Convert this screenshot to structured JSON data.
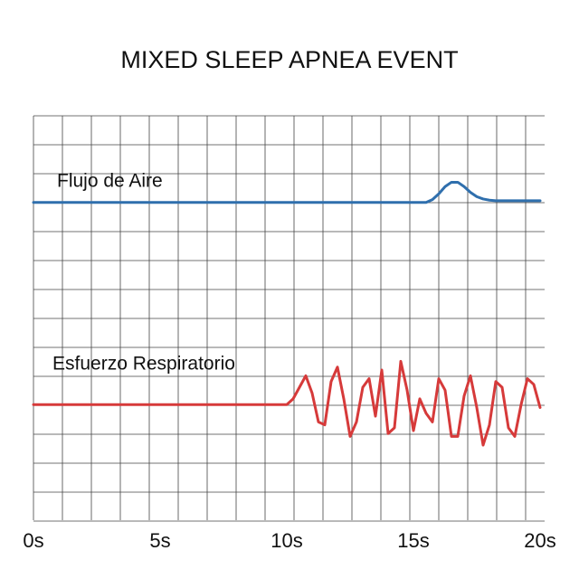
{
  "chart_data": {
    "type": "line",
    "title": "MIXED SLEEP APNEA EVENT",
    "x": [
      0,
      0.25,
      0.5,
      0.75,
      1,
      1.25,
      1.5,
      1.75,
      2,
      2.25,
      2.5,
      2.75,
      3,
      3.25,
      3.5,
      3.75,
      4,
      4.25,
      4.5,
      4.75,
      5,
      5.25,
      5.5,
      5.75,
      6,
      6.25,
      6.5,
      6.75,
      7,
      7.25,
      7.5,
      7.75,
      8,
      8.25,
      8.5,
      8.75,
      9,
      9.25,
      9.5,
      9.75,
      10,
      10.25,
      10.5,
      10.75,
      11,
      11.25,
      11.5,
      11.75,
      12,
      12.25,
      12.5,
      12.75,
      13,
      13.25,
      13.5,
      13.75,
      14,
      14.25,
      14.5,
      14.75,
      15,
      15.25,
      15.5,
      15.75,
      16,
      16.25,
      16.5,
      16.75,
      17,
      17.25,
      17.5,
      17.75,
      18,
      18.25,
      18.5,
      18.75,
      19,
      19.25,
      19.5,
      19.75,
      20
    ],
    "series": [
      {
        "name": "Flujo de Aire",
        "color": "#2f6fad",
        "values": [
          11,
          11,
          11,
          11,
          11,
          11,
          11,
          11,
          11,
          11,
          11,
          11,
          11,
          11,
          11,
          11,
          11,
          11,
          11,
          11,
          11,
          11,
          11,
          11,
          11,
          11,
          11,
          11,
          11,
          11,
          11,
          11,
          11,
          11,
          11,
          11,
          11,
          11,
          11,
          11,
          11,
          11,
          11,
          11,
          11,
          11,
          11,
          11,
          11,
          11,
          11,
          11,
          11,
          11,
          11,
          11,
          11,
          11,
          11,
          11,
          11,
          11,
          11,
          11.1,
          11.3,
          11.55,
          11.7,
          11.7,
          11.55,
          11.35,
          11.2,
          11.12,
          11.08,
          11.06,
          11.06,
          11.06,
          11.06,
          11.06,
          11.06,
          11.06,
          11.06
        ]
      },
      {
        "name": "Esfuerzo Respiratorio",
        "color": "#d63a3a",
        "values": [
          4,
          4,
          4,
          4,
          4,
          4,
          4,
          4,
          4,
          4,
          4,
          4,
          4,
          4,
          4,
          4,
          4,
          4,
          4,
          4,
          4,
          4,
          4,
          4,
          4,
          4,
          4,
          4,
          4,
          4,
          4,
          4,
          4,
          4,
          4,
          4,
          4,
          4,
          4,
          4,
          4,
          4.2,
          4.6,
          5.0,
          4.4,
          3.4,
          3.3,
          4.8,
          5.3,
          4.2,
          2.9,
          3.4,
          4.6,
          4.9,
          3.6,
          5.2,
          3.0,
          3.2,
          5.5,
          4.5,
          3.1,
          4.2,
          3.7,
          3.4,
          4.9,
          4.5,
          2.9,
          2.9,
          4.3,
          5.0,
          3.9,
          2.6,
          3.3,
          4.8,
          4.6,
          3.2,
          2.9,
          4.0,
          4.9,
          4.7,
          3.9
        ]
      }
    ],
    "xlim": [
      0,
      20
    ],
    "xticks": [
      {
        "value": 0,
        "label": "0s"
      },
      {
        "value": 5,
        "label": "5s"
      },
      {
        "value": 10,
        "label": "10s"
      },
      {
        "value": 15,
        "label": "15s"
      },
      {
        "value": 20,
        "label": "20s"
      }
    ],
    "ylim": [
      0,
      14
    ],
    "grid": true
  }
}
